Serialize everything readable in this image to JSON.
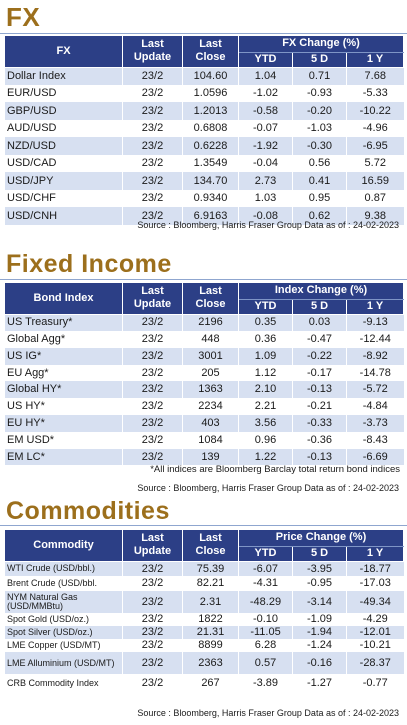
{
  "fx": {
    "title": "FX",
    "headers": {
      "name": "FX",
      "last_update": "Last Update",
      "last_close": "Last Close",
      "group": "FX Change (%)",
      "ytd": "YTD",
      "five_d": "5 D",
      "one_y": "1 Y"
    },
    "rows": [
      {
        "name": "Dollar Index",
        "update": "23/2",
        "close": "104.60",
        "ytd": "1.04",
        "d5": "0.71",
        "y1": "7.68"
      },
      {
        "name": "EUR/USD",
        "update": "23/2",
        "close": "1.0596",
        "ytd": "-1.02",
        "d5": "-0.93",
        "y1": "-5.33"
      },
      {
        "name": "GBP/USD",
        "update": "23/2",
        "close": "1.2013",
        "ytd": "-0.58",
        "d5": "-0.20",
        "y1": "-10.22"
      },
      {
        "name": "AUD/USD",
        "update": "23/2",
        "close": "0.6808",
        "ytd": "-0.07",
        "d5": "-1.03",
        "y1": "-4.96"
      },
      {
        "name": "NZD/USD",
        "update": "23/2",
        "close": "0.6228",
        "ytd": "-1.92",
        "d5": "-0.30",
        "y1": "-6.95"
      },
      {
        "name": "USD/CAD",
        "update": "23/2",
        "close": "1.3549",
        "ytd": "-0.04",
        "d5": "0.56",
        "y1": "5.72"
      },
      {
        "name": "USD/JPY",
        "update": "23/2",
        "close": "134.70",
        "ytd": "2.73",
        "d5": "0.41",
        "y1": "16.59"
      },
      {
        "name": "USD/CHF",
        "update": "23/2",
        "close": "0.9340",
        "ytd": "1.03",
        "d5": "0.95",
        "y1": "0.87"
      },
      {
        "name": "USD/CNH",
        "update": "23/2",
        "close": "6.9163",
        "ytd": "-0.08",
        "d5": "0.62",
        "y1": "9.38"
      }
    ],
    "source": "Source : Bloomberg, Harris Fraser Group Data as of : 24-02-2023"
  },
  "fixed_income": {
    "title": "Fixed Income",
    "headers": {
      "name": "Bond Index",
      "last_update": "Last Update",
      "last_close": "Last Close",
      "group": "Index Change (%)",
      "ytd": "YTD",
      "five_d": "5 D",
      "one_y": "1 Y"
    },
    "rows": [
      {
        "name": "US Treasury*",
        "update": "23/2",
        "close": "2196",
        "ytd": "0.35",
        "d5": "0.03",
        "y1": "-9.13"
      },
      {
        "name": "Global Agg*",
        "update": "23/2",
        "close": "448",
        "ytd": "0.36",
        "d5": "-0.47",
        "y1": "-12.44"
      },
      {
        "name": "US IG*",
        "update": "23/2",
        "close": "3001",
        "ytd": "1.09",
        "d5": "-0.22",
        "y1": "-8.92"
      },
      {
        "name": "EU Agg*",
        "update": "23/2",
        "close": "205",
        "ytd": "1.12",
        "d5": "-0.17",
        "y1": "-14.78"
      },
      {
        "name": "Global HY*",
        "update": "23/2",
        "close": "1363",
        "ytd": "2.10",
        "d5": "-0.13",
        "y1": "-5.72"
      },
      {
        "name": "US HY*",
        "update": "23/2",
        "close": "2234",
        "ytd": "2.21",
        "d5": "-0.21",
        "y1": "-4.84"
      },
      {
        "name": "EU HY*",
        "update": "23/2",
        "close": "403",
        "ytd": "3.56",
        "d5": "-0.33",
        "y1": "-3.73"
      },
      {
        "name": "EM USD*",
        "update": "23/2",
        "close": "1084",
        "ytd": "0.96",
        "d5": "-0.36",
        "y1": "-8.43"
      },
      {
        "name": "EM LC*",
        "update": "23/2",
        "close": "139",
        "ytd": "1.22",
        "d5": "-0.13",
        "y1": "-6.69"
      }
    ],
    "note": "*All indices are Bloomberg Barclay total return bond indices",
    "source": "Source : Bloomberg, Harris Fraser Group Data as of : 24-02-2023"
  },
  "commodities": {
    "title": "Commodities",
    "headers": {
      "name": "Commodity",
      "last_update": "Last Update",
      "last_close": "Last Close",
      "group": "Price Change (%)",
      "ytd": "YTD",
      "five_d": "5 D",
      "one_y": "1 Y"
    },
    "rows": [
      {
        "name": "WTI Crude (USD/bbl.)",
        "update": "23/2",
        "close": "75.39",
        "ytd": "-6.07",
        "d5": "-3.95",
        "y1": "-18.77"
      },
      {
        "name": "Brent Crude (USD/bbl.",
        "update": "23/2",
        "close": "82.21",
        "ytd": "-4.31",
        "d5": "-0.95",
        "y1": "-17.03"
      },
      {
        "name": "NYM Natural Gas (USD/MMBtu)",
        "update": "23/2",
        "close": "2.31",
        "ytd": "-48.29",
        "d5": "-3.14",
        "y1": "-49.34"
      },
      {
        "name": "Spot Gold (USD/oz.)",
        "update": "23/2",
        "close": "1822",
        "ytd": "-0.10",
        "d5": "-1.09",
        "y1": "-4.29"
      },
      {
        "name": "Spot Silver (USD/oz.)",
        "update": "23/2",
        "close": "21.31",
        "ytd": "-11.05",
        "d5": "-1.94",
        "y1": "-12.01"
      },
      {
        "name": "LME Copper (USD/MT)",
        "update": "23/2",
        "close": "8899",
        "ytd": "6.28",
        "d5": "-1.24",
        "y1": "-10.21"
      },
      {
        "name": "LME Alluminium (USD/MT)",
        "update": "23/2",
        "close": "2363",
        "ytd": "0.57",
        "d5": "-0.16",
        "y1": "-28.37"
      },
      {
        "name": "CRB Commodity Index",
        "update": "23/2",
        "close": "267",
        "ytd": "-3.89",
        "d5": "-1.27",
        "y1": "-0.77"
      }
    ],
    "source": "Source : Bloomberg, Harris Fraser Group Data as of : 24-02-2023"
  }
}
